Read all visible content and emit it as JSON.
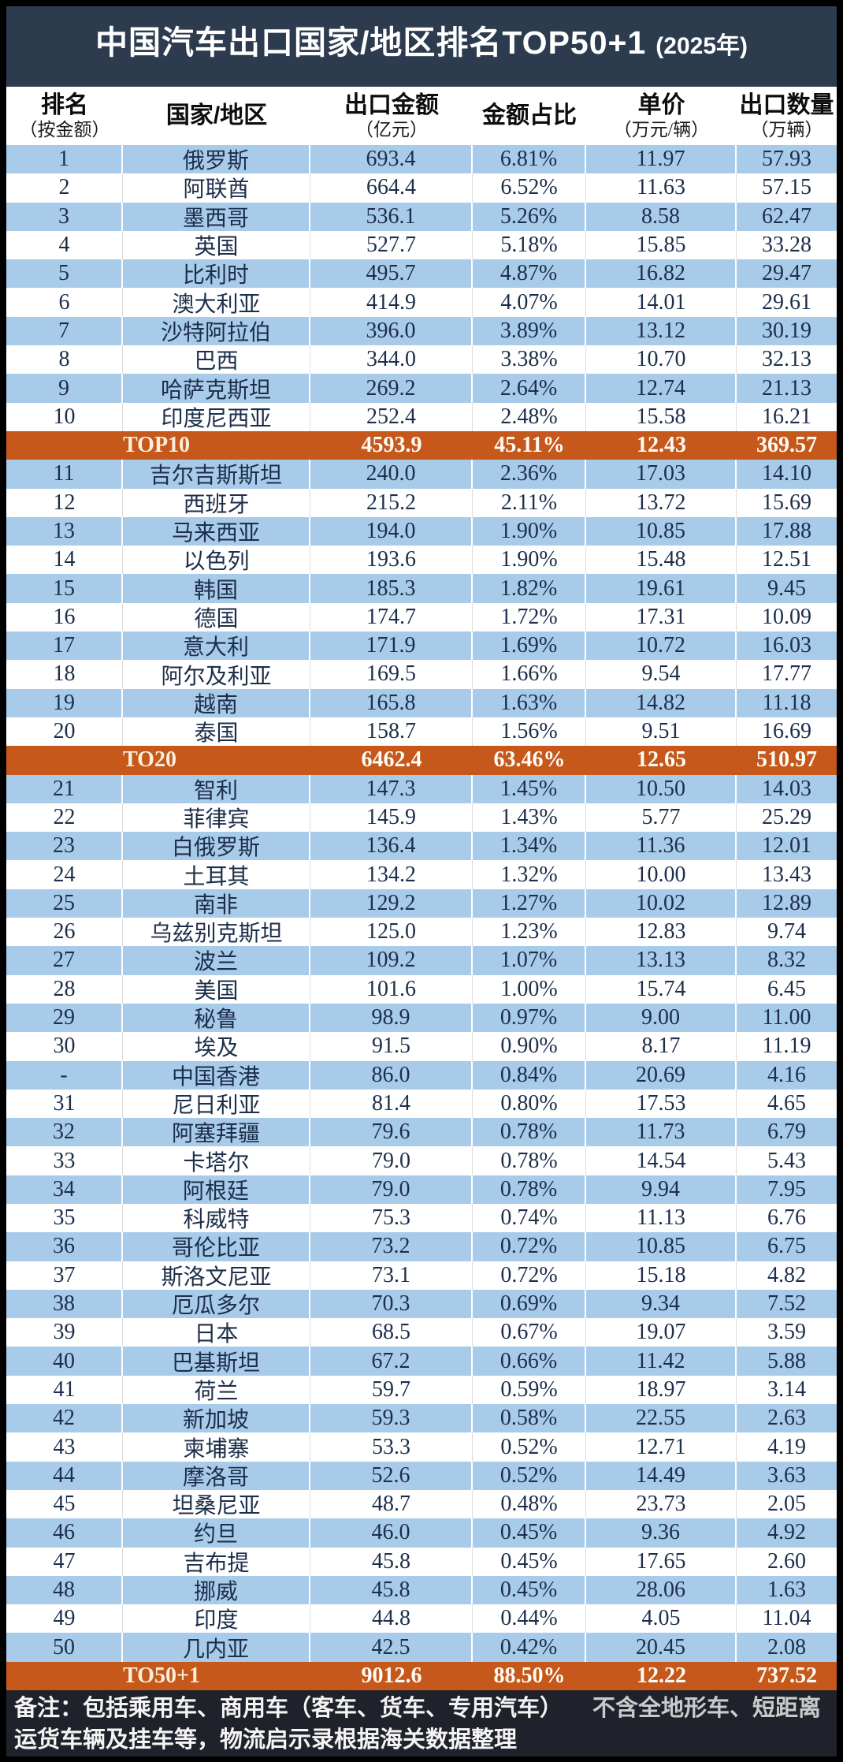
{
  "title": {
    "main": "中国汽车出口国家/地区排名TOP50+1",
    "suffix": "(2025年)"
  },
  "header": {
    "columns": [
      {
        "main": "排名",
        "sub": "（按金额）"
      },
      {
        "main": "国家/地区",
        "sub": ""
      },
      {
        "main": "出口金额",
        "sub": "（亿元）"
      },
      {
        "main": "金额占比",
        "sub": ""
      },
      {
        "main": "单价",
        "sub": "（万元/辆）"
      },
      {
        "main": "出口数量",
        "sub": "（万辆）"
      }
    ]
  },
  "chart_data": {
    "type": "table",
    "title": "中国汽车出口国家/地区排名TOP50+1 (2025年)",
    "columns": [
      "排名（按金额）",
      "国家/地区",
      "出口金额（亿元）",
      "金额占比",
      "单价（万元/辆）",
      "出口数量（万辆）"
    ],
    "rows": [
      {
        "rank": "1",
        "country": "俄罗斯",
        "amount": "693.4",
        "share": "6.81%",
        "price": "11.97",
        "qty": "57.93",
        "style": "blue"
      },
      {
        "rank": "2",
        "country": "阿联酋",
        "amount": "664.4",
        "share": "6.52%",
        "price": "11.63",
        "qty": "57.15",
        "style": "white"
      },
      {
        "rank": "3",
        "country": "墨西哥",
        "amount": "536.1",
        "share": "5.26%",
        "price": "8.58",
        "qty": "62.47",
        "style": "blue"
      },
      {
        "rank": "4",
        "country": "英国",
        "amount": "527.7",
        "share": "5.18%",
        "price": "15.85",
        "qty": "33.28",
        "style": "white"
      },
      {
        "rank": "5",
        "country": "比利时",
        "amount": "495.7",
        "share": "4.87%",
        "price": "16.82",
        "qty": "29.47",
        "style": "blue"
      },
      {
        "rank": "6",
        "country": "澳大利亚",
        "amount": "414.9",
        "share": "4.07%",
        "price": "14.01",
        "qty": "29.61",
        "style": "white"
      },
      {
        "rank": "7",
        "country": "沙特阿拉伯",
        "amount": "396.0",
        "share": "3.89%",
        "price": "13.12",
        "qty": "30.19",
        "style": "blue"
      },
      {
        "rank": "8",
        "country": "巴西",
        "amount": "344.0",
        "share": "3.38%",
        "price": "10.70",
        "qty": "32.13",
        "style": "white"
      },
      {
        "rank": "9",
        "country": "哈萨克斯坦",
        "amount": "269.2",
        "share": "2.64%",
        "price": "12.74",
        "qty": "21.13",
        "style": "blue"
      },
      {
        "rank": "10",
        "country": "印度尼西亚",
        "amount": "252.4",
        "share": "2.48%",
        "price": "15.58",
        "qty": "16.21",
        "style": "white"
      },
      {
        "rank": "",
        "country": "TOP10",
        "amount": "4593.9",
        "share": "45.11%",
        "price": "12.43",
        "qty": "369.57",
        "style": "total"
      },
      {
        "rank": "11",
        "country": "吉尔吉斯斯坦",
        "amount": "240.0",
        "share": "2.36%",
        "price": "17.03",
        "qty": "14.10",
        "style": "blue"
      },
      {
        "rank": "12",
        "country": "西班牙",
        "amount": "215.2",
        "share": "2.11%",
        "price": "13.72",
        "qty": "15.69",
        "style": "white"
      },
      {
        "rank": "13",
        "country": "马来西亚",
        "amount": "194.0",
        "share": "1.90%",
        "price": "10.85",
        "qty": "17.88",
        "style": "blue"
      },
      {
        "rank": "14",
        "country": "以色列",
        "amount": "193.6",
        "share": "1.90%",
        "price": "15.48",
        "qty": "12.51",
        "style": "white"
      },
      {
        "rank": "15",
        "country": "韩国",
        "amount": "185.3",
        "share": "1.82%",
        "price": "19.61",
        "qty": "9.45",
        "style": "blue"
      },
      {
        "rank": "16",
        "country": "德国",
        "amount": "174.7",
        "share": "1.72%",
        "price": "17.31",
        "qty": "10.09",
        "style": "white"
      },
      {
        "rank": "17",
        "country": "意大利",
        "amount": "171.9",
        "share": "1.69%",
        "price": "10.72",
        "qty": "16.03",
        "style": "blue"
      },
      {
        "rank": "18",
        "country": "阿尔及利亚",
        "amount": "169.5",
        "share": "1.66%",
        "price": "9.54",
        "qty": "17.77",
        "style": "white"
      },
      {
        "rank": "19",
        "country": "越南",
        "amount": "165.8",
        "share": "1.63%",
        "price": "14.82",
        "qty": "11.18",
        "style": "blue"
      },
      {
        "rank": "20",
        "country": "泰国",
        "amount": "158.7",
        "share": "1.56%",
        "price": "9.51",
        "qty": "16.69",
        "style": "white"
      },
      {
        "rank": "",
        "country": "TO20",
        "amount": "6462.4",
        "share": "63.46%",
        "price": "12.65",
        "qty": "510.97",
        "style": "total"
      },
      {
        "rank": "21",
        "country": "智利",
        "amount": "147.3",
        "share": "1.45%",
        "price": "10.50",
        "qty": "14.03",
        "style": "blue"
      },
      {
        "rank": "22",
        "country": "菲律宾",
        "amount": "145.9",
        "share": "1.43%",
        "price": "5.77",
        "qty": "25.29",
        "style": "white"
      },
      {
        "rank": "23",
        "country": "白俄罗斯",
        "amount": "136.4",
        "share": "1.34%",
        "price": "11.36",
        "qty": "12.01",
        "style": "blue"
      },
      {
        "rank": "24",
        "country": "土耳其",
        "amount": "134.2",
        "share": "1.32%",
        "price": "10.00",
        "qty": "13.43",
        "style": "white"
      },
      {
        "rank": "25",
        "country": "南非",
        "amount": "129.2",
        "share": "1.27%",
        "price": "10.02",
        "qty": "12.89",
        "style": "blue"
      },
      {
        "rank": "26",
        "country": "乌兹别克斯坦",
        "amount": "125.0",
        "share": "1.23%",
        "price": "12.83",
        "qty": "9.74",
        "style": "white"
      },
      {
        "rank": "27",
        "country": "波兰",
        "amount": "109.2",
        "share": "1.07%",
        "price": "13.13",
        "qty": "8.32",
        "style": "blue"
      },
      {
        "rank": "28",
        "country": "美国",
        "amount": "101.6",
        "share": "1.00%",
        "price": "15.74",
        "qty": "6.45",
        "style": "white"
      },
      {
        "rank": "29",
        "country": "秘鲁",
        "amount": "98.9",
        "share": "0.97%",
        "price": "9.00",
        "qty": "11.00",
        "style": "blue"
      },
      {
        "rank": "30",
        "country": "埃及",
        "amount": "91.5",
        "share": "0.90%",
        "price": "8.17",
        "qty": "11.19",
        "style": "white"
      },
      {
        "rank": "-",
        "country": "中国香港",
        "amount": "86.0",
        "share": "0.84%",
        "price": "20.69",
        "qty": "4.16",
        "style": "blue"
      },
      {
        "rank": "31",
        "country": "尼日利亚",
        "amount": "81.4",
        "share": "0.80%",
        "price": "17.53",
        "qty": "4.65",
        "style": "white"
      },
      {
        "rank": "32",
        "country": "阿塞拜疆",
        "amount": "79.6",
        "share": "0.78%",
        "price": "11.73",
        "qty": "6.79",
        "style": "blue"
      },
      {
        "rank": "33",
        "country": "卡塔尔",
        "amount": "79.0",
        "share": "0.78%",
        "price": "14.54",
        "qty": "5.43",
        "style": "white"
      },
      {
        "rank": "34",
        "country": "阿根廷",
        "amount": "79.0",
        "share": "0.78%",
        "price": "9.94",
        "qty": "7.95",
        "style": "blue"
      },
      {
        "rank": "35",
        "country": "科威特",
        "amount": "75.3",
        "share": "0.74%",
        "price": "11.13",
        "qty": "6.76",
        "style": "white"
      },
      {
        "rank": "36",
        "country": "哥伦比亚",
        "amount": "73.2",
        "share": "0.72%",
        "price": "10.85",
        "qty": "6.75",
        "style": "blue"
      },
      {
        "rank": "37",
        "country": "斯洛文尼亚",
        "amount": "73.1",
        "share": "0.72%",
        "price": "15.18",
        "qty": "4.82",
        "style": "white"
      },
      {
        "rank": "38",
        "country": "厄瓜多尔",
        "amount": "70.3",
        "share": "0.69%",
        "price": "9.34",
        "qty": "7.52",
        "style": "blue"
      },
      {
        "rank": "39",
        "country": "日本",
        "amount": "68.5",
        "share": "0.67%",
        "price": "19.07",
        "qty": "3.59",
        "style": "white"
      },
      {
        "rank": "40",
        "country": "巴基斯坦",
        "amount": "67.2",
        "share": "0.66%",
        "price": "11.42",
        "qty": "5.88",
        "style": "blue"
      },
      {
        "rank": "41",
        "country": "荷兰",
        "amount": "59.7",
        "share": "0.59%",
        "price": "18.97",
        "qty": "3.14",
        "style": "white"
      },
      {
        "rank": "42",
        "country": "新加坡",
        "amount": "59.3",
        "share": "0.58%",
        "price": "22.55",
        "qty": "2.63",
        "style": "blue"
      },
      {
        "rank": "43",
        "country": "柬埔寨",
        "amount": "53.3",
        "share": "0.52%",
        "price": "12.71",
        "qty": "4.19",
        "style": "white"
      },
      {
        "rank": "44",
        "country": "摩洛哥",
        "amount": "52.6",
        "share": "0.52%",
        "price": "14.49",
        "qty": "3.63",
        "style": "blue"
      },
      {
        "rank": "45",
        "country": "坦桑尼亚",
        "amount": "48.7",
        "share": "0.48%",
        "price": "23.73",
        "qty": "2.05",
        "style": "white"
      },
      {
        "rank": "46",
        "country": "约旦",
        "amount": "46.0",
        "share": "0.45%",
        "price": "9.36",
        "qty": "4.92",
        "style": "blue"
      },
      {
        "rank": "47",
        "country": "吉布提",
        "amount": "45.8",
        "share": "0.45%",
        "price": "17.65",
        "qty": "2.60",
        "style": "white"
      },
      {
        "rank": "48",
        "country": "挪威",
        "amount": "45.8",
        "share": "0.45%",
        "price": "28.06",
        "qty": "1.63",
        "style": "blue"
      },
      {
        "rank": "49",
        "country": "印度",
        "amount": "44.8",
        "share": "0.44%",
        "price": "4.05",
        "qty": "11.04",
        "style": "white"
      },
      {
        "rank": "50",
        "country": "几内亚",
        "amount": "42.5",
        "share": "0.42%",
        "price": "20.45",
        "qty": "2.08",
        "style": "blue"
      },
      {
        "rank": "",
        "country": "TO50+1",
        "amount": "9012.6",
        "share": "88.50%",
        "price": "12.22",
        "qty": "737.52",
        "style": "total"
      }
    ]
  },
  "footer": {
    "line1": "备注：包括乘用车、商用车（客车、货车、专用汽车）",
    "line1_faded": "不含全地形车、短距离",
    "line2": "运货车辆及挂车等，物流启示录根据海关数据整理"
  },
  "colors": {
    "title_bg": "#2D3B4E",
    "row_blue": "#A8CBE9",
    "row_white": "#FFFFFF",
    "total_orange": "#C5581A",
    "footer_bg": "#1F222A",
    "cell_text": "#1C2E4A"
  }
}
